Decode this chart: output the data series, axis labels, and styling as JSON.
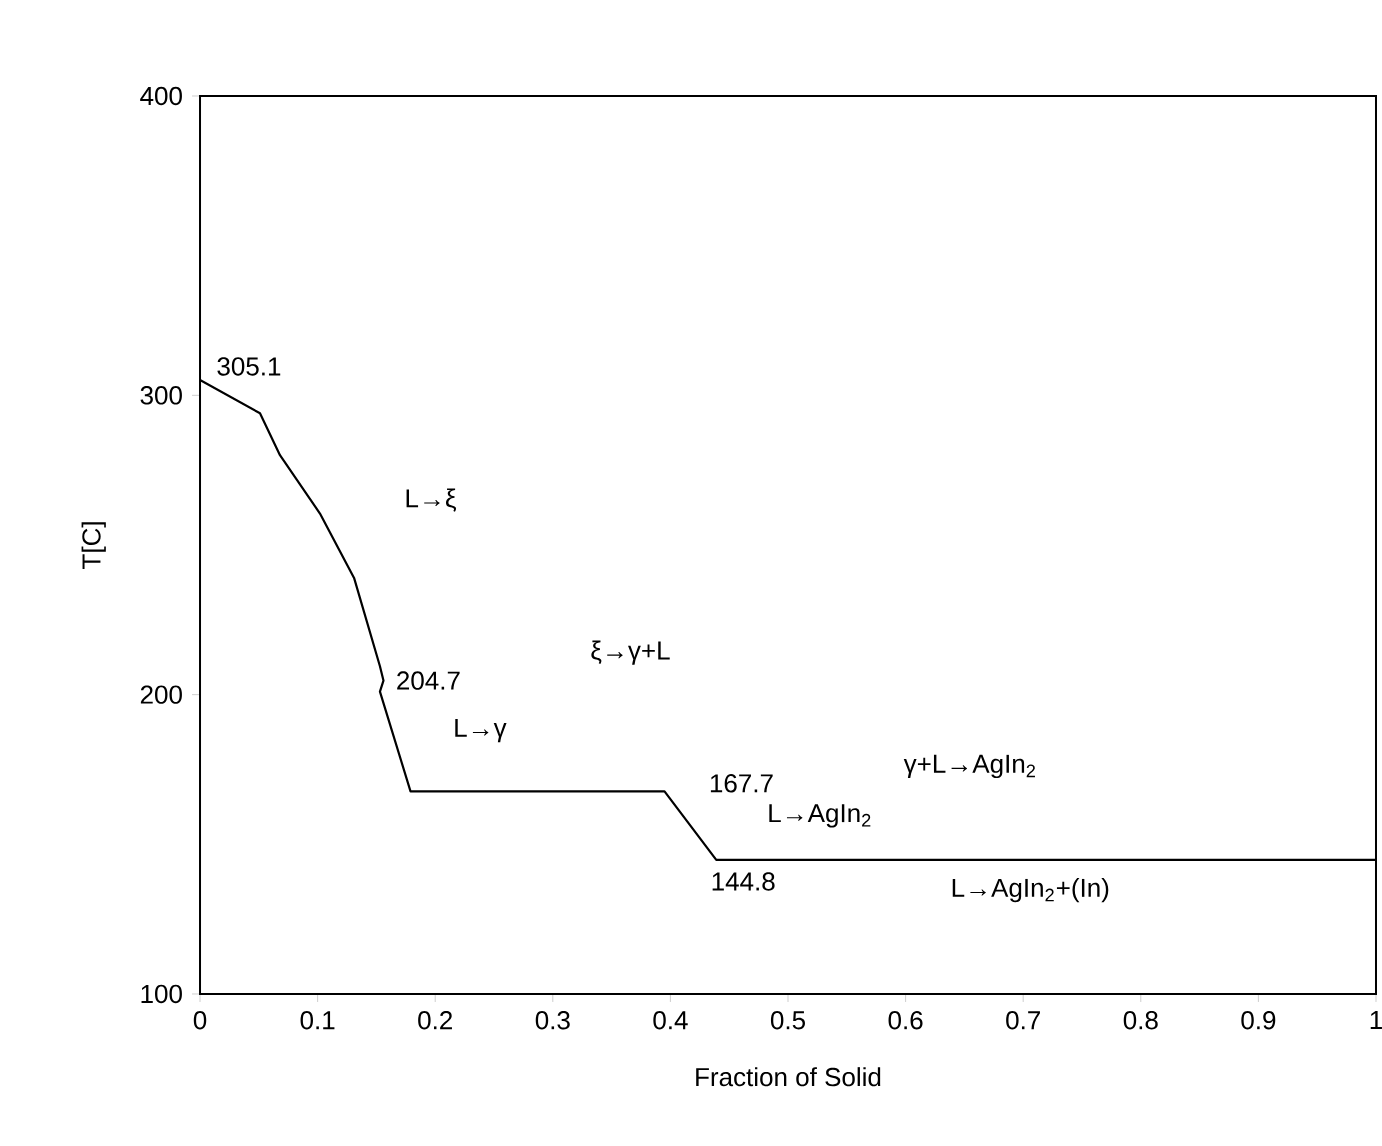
{
  "chart_data": {
    "type": "line",
    "xlabel": "Fraction of Solid",
    "ylabel": "T[C]",
    "x": [
      0,
      0.051,
      0.068,
      0.102,
      0.131,
      0.153,
      0.156,
      0.153,
      0.179,
      0.395,
      0.439,
      1
    ],
    "values": [
      305.1,
      294,
      280,
      260.5,
      239,
      209.5,
      204.7,
      201,
      167.7,
      167.7,
      144.8,
      144.8
    ],
    "color": "#000000",
    "marker": "none",
    "line_style": "solid",
    "grid": false,
    "xlim": [
      0,
      1
    ],
    "ylim": [
      100,
      400
    ],
    "xticks": [
      0,
      0.1,
      0.2,
      0.3,
      0.4,
      0.5,
      0.6,
      0.7,
      0.8,
      0.9,
      1
    ],
    "yticks": [
      100,
      200,
      300,
      400
    ],
    "annotations": [
      {
        "text": "305.1",
        "x": 0,
        "y": 305.1
      },
      {
        "text": "204.7",
        "x": 0.156,
        "y": 204.7
      },
      {
        "text": "167.7",
        "x": 0.395,
        "y": 167.7
      },
      {
        "text": "144.8",
        "x": 0.439,
        "y": 144.8
      },
      "L→ξ",
      "ξ→γ+L",
      "L→γ",
      "γ+L→AgIn$_{2}$",
      "L→AgIn$_{2}$",
      "L→AgIn$_{2}$+(In)"
    ]
  }
}
